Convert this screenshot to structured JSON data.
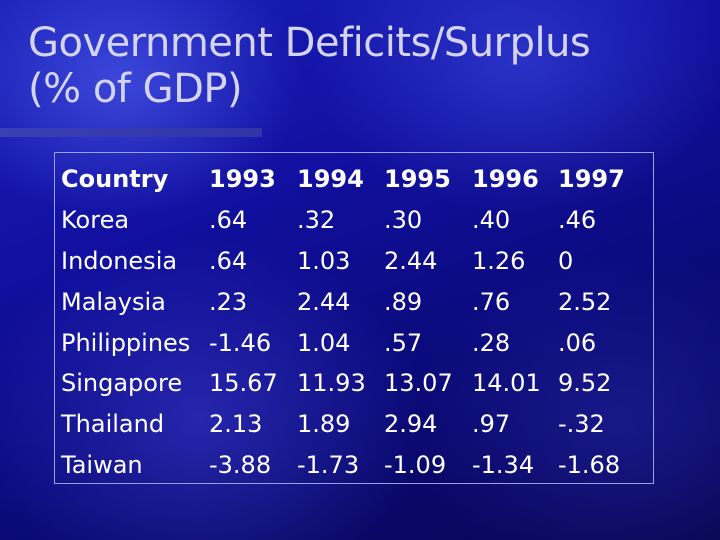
{
  "slide": {
    "title_line1": "Government Deficits/Surplus",
    "title_line2": "(% of GDP)"
  },
  "table": {
    "headers": [
      "Country",
      "1993",
      "1994",
      "1995",
      "1996",
      "1997"
    ],
    "rows": [
      [
        "Korea",
        ".64",
        ".32",
        ".30",
        ".40",
        ".46"
      ],
      [
        "Indonesia",
        ".64",
        "1.03",
        "2.44",
        "1.26",
        "0"
      ],
      [
        "Malaysia",
        ".23",
        "2.44",
        ".89",
        ".76",
        "2.52"
      ],
      [
        "Philippines",
        "-1.46",
        "1.04",
        ".57",
        ".28",
        ".06"
      ],
      [
        "Singapore",
        "15.67",
        "11.93",
        "13.07",
        "14.01",
        "9.52"
      ],
      [
        "Thailand",
        "2.13",
        "1.89",
        "2.94",
        ".97",
        "-.32"
      ],
      [
        "Taiwan",
        "-3.88",
        "-1.73",
        "-1.09",
        "-1.34",
        "-1.68"
      ]
    ]
  }
}
